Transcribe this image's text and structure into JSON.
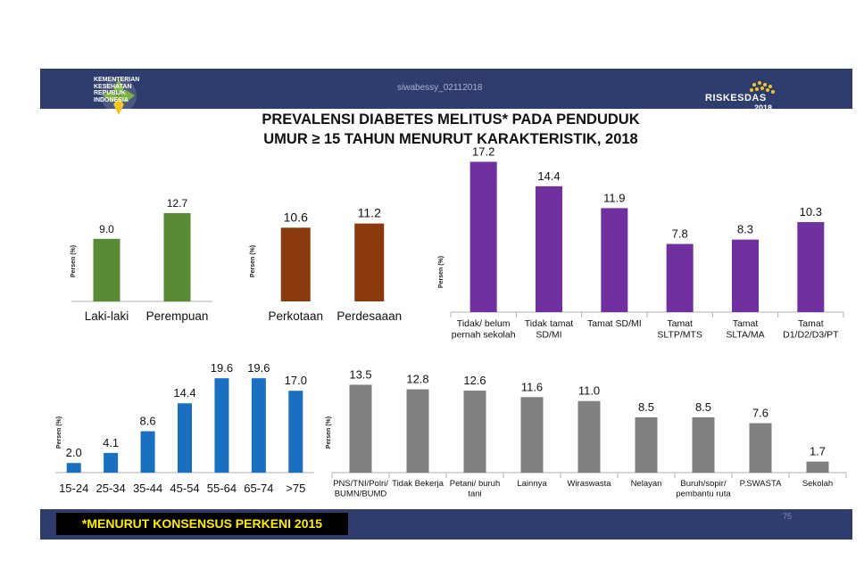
{
  "header": {
    "org_lines": [
      "KEMENTERIAN",
      "KESEHATAN",
      "REPUBLIK",
      "INDONESIA"
    ],
    "watermark": "siwabessy_02112018",
    "riskesdas_label": "RISKESDAS",
    "riskesdas_year": "2018",
    "colors": {
      "banner": "#2e3d6e",
      "logo_green": "#7cb342",
      "logo_yellow": "#f3c623"
    }
  },
  "title": {
    "line1": "PREVALENSI DIABETES MELITUS* PADA PENDUDUK",
    "line2": "UMUR ≥ 15 TAHUN MENURUT KARAKTERISTIK,  2018"
  },
  "footer": {
    "note": "*MENURUT KONSENSUS PERKENI 2015",
    "page": "75"
  },
  "chart_data": [
    {
      "type": "bar",
      "ylabel": "Persen (%)",
      "color": "#5a8a35",
      "categories": [
        "Laki-laki",
        "Perempuan"
      ],
      "values": [
        9.0,
        12.7
      ],
      "labels": [
        "9.0",
        "12.7"
      ]
    },
    {
      "type": "bar",
      "ylabel": "Persen (%)",
      "color": "#8b3a0f",
      "categories": [
        "Perkotaan",
        "Perdesaaan"
      ],
      "values": [
        10.6,
        11.2
      ],
      "labels": [
        "10.6",
        "11.2"
      ]
    },
    {
      "type": "bar",
      "ylabel": "Persen (%)",
      "color": "#7030a0",
      "categories": [
        [
          "Tidak/ belum",
          "pernah sekolah"
        ],
        [
          "Tidak tamat",
          "SD/MI"
        ],
        [
          "Tamat SD/MI"
        ],
        [
          "Tamat",
          "SLTP/MTS"
        ],
        [
          "Tamat",
          "SLTA/MA"
        ],
        [
          "Tamat",
          "D1/D2/D3/PT"
        ]
      ],
      "values": [
        17.2,
        14.4,
        11.9,
        7.8,
        8.3,
        10.3
      ],
      "labels": [
        "17.2",
        "14.4",
        "11.9",
        "7.8",
        "8.3",
        "10.3"
      ]
    },
    {
      "type": "bar",
      "ylabel": "Persen (%)",
      "color": "#1a6fc0",
      "categories": [
        "15-24",
        "25-34",
        "35-44",
        "45-54",
        "55-64",
        "65-74",
        ">75"
      ],
      "values": [
        2.0,
        4.1,
        8.6,
        14.4,
        19.6,
        19.6,
        17.0
      ],
      "labels": [
        "2.0",
        "4.1",
        "8.6",
        "14.4",
        "19.6",
        "19.6",
        "17.0"
      ]
    },
    {
      "type": "bar",
      "ylabel": "Persen (%)",
      "color": "#808080",
      "categories": [
        [
          "PNS/TNI/Polri/",
          "BUMN/BUMD"
        ],
        [
          "Tidak Bekerja"
        ],
        [
          "Petani/ buruh",
          "tani"
        ],
        [
          "Lainnya"
        ],
        [
          "Wiraswasta"
        ],
        [
          "Nelayan"
        ],
        [
          "Buruh/sopir/",
          "pembantu ruta"
        ],
        [
          "P.SWASTA"
        ],
        [
          "Sekolah"
        ]
      ],
      "values": [
        13.5,
        12.8,
        12.6,
        11.6,
        11.0,
        8.5,
        8.5,
        7.6,
        1.7
      ],
      "labels": [
        "13.5",
        "12.8",
        "12.6",
        "11.6",
        "11.0",
        "8.5",
        "8.5",
        "7.6",
        "1.7"
      ]
    }
  ]
}
